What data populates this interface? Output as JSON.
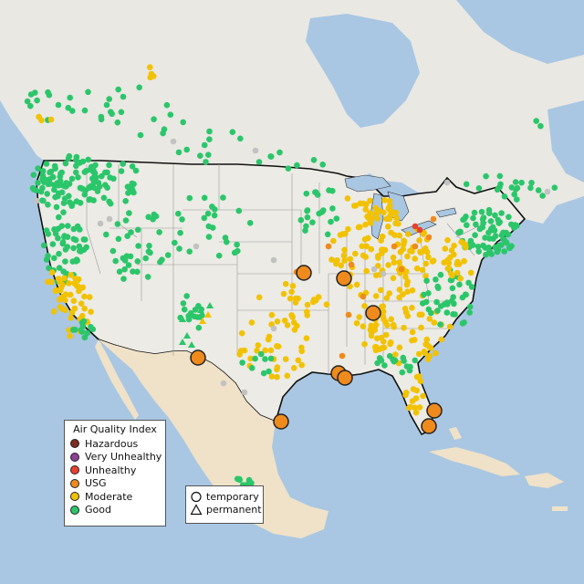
{
  "legend": {
    "title": "Air Quality Index",
    "items": [
      {
        "label": "Hazardous",
        "color": "#7e2a1e"
      },
      {
        "label": "Very Unhealthy",
        "color": "#8f3f97"
      },
      {
        "label": "Unhealthy",
        "color": "#e84030"
      },
      {
        "label": "USG",
        "color": "#ef8a1c"
      },
      {
        "label": "Moderate",
        "color": "#f2c200"
      },
      {
        "label": "Good",
        "color": "#2bc66a"
      }
    ]
  },
  "shape_legend": {
    "temporary": "temporary",
    "permanent": "permanent"
  },
  "colors": {
    "water": "#a9c7e2",
    "land": "#ecebe5",
    "canada": "#e9e8e3",
    "mexico": "#efe2c8",
    "unavailable": "#c2c2c2"
  }
}
